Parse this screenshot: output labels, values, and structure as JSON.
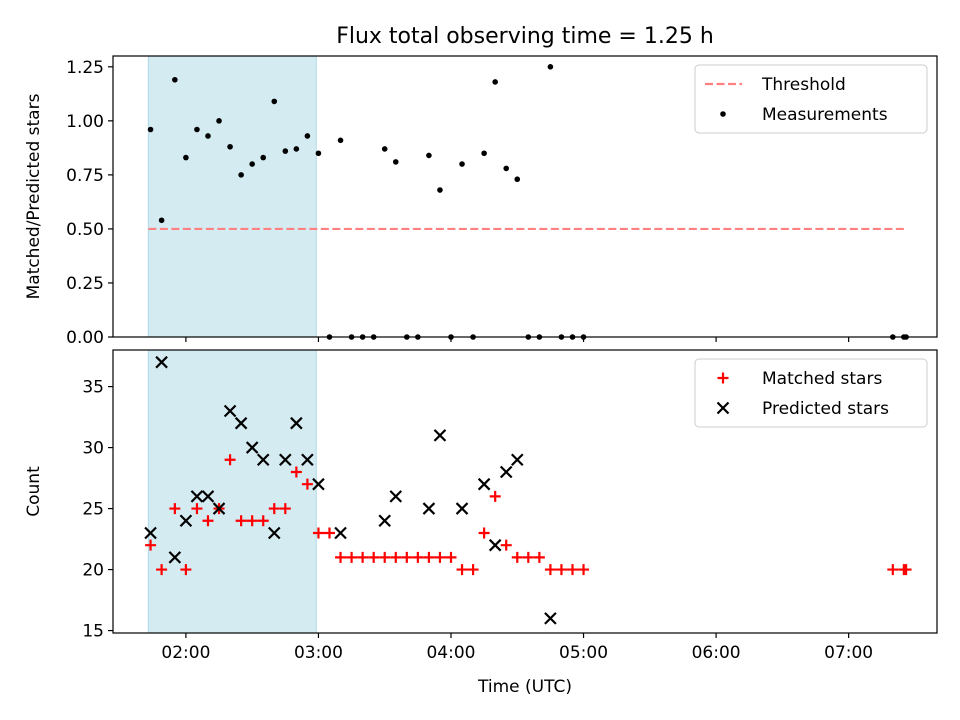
{
  "title": "Flux total observing time = 1.25 h",
  "chart_data": [
    {
      "type": "scatter",
      "ylabel": "Matched/Predicted stars",
      "xlabel": "",
      "xlim": [
        "01:27",
        "07:40"
      ],
      "ylim": [
        0,
        1.3
      ],
      "yticks": [
        0.0,
        0.25,
        0.5,
        0.75,
        1.0,
        1.25
      ],
      "ytick_labels": [
        "0.00",
        "0.25",
        "0.50",
        "0.75",
        "1.00",
        "1.25"
      ],
      "xticks": [
        "02:00",
        "03:00",
        "04:00",
        "05:00",
        "06:00",
        "07:00"
      ],
      "show_xtick_labels": false,
      "shaded_span": {
        "x": [
          "01:43",
          "02:59"
        ],
        "color": "#add8e6"
      },
      "threshold": {
        "y": 0.5,
        "x": [
          "01:43",
          "07:25"
        ],
        "color": "#ff8080",
        "style": "dashed"
      },
      "legend": {
        "placement": "top-right",
        "entries": [
          {
            "label": "Threshold",
            "kind": "dashed-line",
            "color": "#ff8080"
          },
          {
            "label": "Measurements",
            "kind": "dot",
            "color": "#000000"
          }
        ]
      },
      "series": [
        {
          "name": "Measurements",
          "marker": "dot",
          "color": "#000000",
          "points": [
            [
              "01:44",
              0.96
            ],
            [
              "01:49",
              0.54
            ],
            [
              "01:55",
              1.19
            ],
            [
              "02:00",
              0.83
            ],
            [
              "02:05",
              0.96
            ],
            [
              "02:10",
              0.93
            ],
            [
              "02:15",
              1.0
            ],
            [
              "02:20",
              0.88
            ],
            [
              "02:25",
              0.75
            ],
            [
              "02:30",
              0.8
            ],
            [
              "02:35",
              0.83
            ],
            [
              "02:40",
              1.09
            ],
            [
              "02:45",
              0.86
            ],
            [
              "02:50",
              0.87
            ],
            [
              "02:55",
              0.93
            ],
            [
              "03:00",
              0.85
            ],
            [
              "03:05",
              0.0
            ],
            [
              "03:10",
              0.91
            ],
            [
              "03:15",
              0.0
            ],
            [
              "03:20",
              0.0
            ],
            [
              "03:25",
              0.0
            ],
            [
              "03:30",
              0.87
            ],
            [
              "03:35",
              0.81
            ],
            [
              "03:40",
              0.0
            ],
            [
              "03:45",
              0.0
            ],
            [
              "03:50",
              0.84
            ],
            [
              "03:55",
              0.68
            ],
            [
              "04:00",
              0.0
            ],
            [
              "04:05",
              0.8
            ],
            [
              "04:10",
              0.0
            ],
            [
              "04:15",
              0.85
            ],
            [
              "04:20",
              1.18
            ],
            [
              "04:25",
              0.78
            ],
            [
              "04:30",
              0.73
            ],
            [
              "04:35",
              0.0
            ],
            [
              "04:40",
              0.0
            ],
            [
              "04:45",
              1.25
            ],
            [
              "04:50",
              0.0
            ],
            [
              "04:55",
              0.0
            ],
            [
              "05:00",
              0.0
            ],
            [
              "07:20",
              0.0
            ],
            [
              "07:25",
              0.0
            ],
            [
              "07:26",
              0.0
            ]
          ]
        }
      ]
    },
    {
      "type": "scatter",
      "ylabel": "Count",
      "xlabel": "Time (UTC)",
      "xlim": [
        "01:27",
        "07:40"
      ],
      "ylim": [
        14.8,
        38.0
      ],
      "yticks": [
        15,
        20,
        25,
        30,
        35
      ],
      "ytick_labels": [
        "15",
        "20",
        "25",
        "30",
        "35"
      ],
      "xticks": [
        "02:00",
        "03:00",
        "04:00",
        "05:00",
        "06:00",
        "07:00"
      ],
      "xtick_labels": [
        "02:00",
        "03:00",
        "04:00",
        "05:00",
        "06:00",
        "07:00"
      ],
      "shaded_span": {
        "x": [
          "01:43",
          "02:59"
        ],
        "color": "#add8e6"
      },
      "legend": {
        "placement": "top-right",
        "entries": [
          {
            "label": "Matched stars",
            "kind": "plus",
            "color": "#ff0000"
          },
          {
            "label": "Predicted stars",
            "kind": "cross",
            "color": "#000000"
          }
        ]
      },
      "series": [
        {
          "name": "Matched stars",
          "marker": "plus",
          "color": "#ff0000",
          "points": [
            [
              "01:44",
              22
            ],
            [
              "01:49",
              20
            ],
            [
              "01:55",
              25
            ],
            [
              "02:00",
              20
            ],
            [
              "02:05",
              25
            ],
            [
              "02:10",
              24
            ],
            [
              "02:15",
              25
            ],
            [
              "02:20",
              29
            ],
            [
              "02:25",
              24
            ],
            [
              "02:30",
              24
            ],
            [
              "02:35",
              24
            ],
            [
              "02:40",
              25
            ],
            [
              "02:45",
              25
            ],
            [
              "02:50",
              28
            ],
            [
              "02:55",
              27
            ],
            [
              "03:00",
              23
            ],
            [
              "03:05",
              23
            ],
            [
              "03:10",
              21
            ],
            [
              "03:15",
              21
            ],
            [
              "03:20",
              21
            ],
            [
              "03:25",
              21
            ],
            [
              "03:30",
              21
            ],
            [
              "03:35",
              21
            ],
            [
              "03:40",
              21
            ],
            [
              "03:45",
              21
            ],
            [
              "03:50",
              21
            ],
            [
              "03:55",
              21
            ],
            [
              "04:00",
              21
            ],
            [
              "04:05",
              20
            ],
            [
              "04:10",
              20
            ],
            [
              "04:15",
              23
            ],
            [
              "04:20",
              26
            ],
            [
              "04:25",
              22
            ],
            [
              "04:30",
              21
            ],
            [
              "04:35",
              21
            ],
            [
              "04:40",
              21
            ],
            [
              "04:45",
              20
            ],
            [
              "04:50",
              20
            ],
            [
              "04:55",
              20
            ],
            [
              "05:00",
              20
            ],
            [
              "07:20",
              20
            ],
            [
              "07:25",
              20
            ],
            [
              "07:26",
              20
            ]
          ]
        },
        {
          "name": "Predicted stars",
          "marker": "cross",
          "color": "#000000",
          "points": [
            [
              "01:44",
              23
            ],
            [
              "01:49",
              37
            ],
            [
              "01:55",
              21
            ],
            [
              "02:00",
              24
            ],
            [
              "02:05",
              26
            ],
            [
              "02:10",
              26
            ],
            [
              "02:15",
              25
            ],
            [
              "02:20",
              33
            ],
            [
              "02:25",
              32
            ],
            [
              "02:30",
              30
            ],
            [
              "02:35",
              29
            ],
            [
              "02:40",
              23
            ],
            [
              "02:45",
              29
            ],
            [
              "02:50",
              32
            ],
            [
              "02:55",
              29
            ],
            [
              "03:00",
              27
            ],
            [
              "03:10",
              23
            ],
            [
              "03:30",
              24
            ],
            [
              "03:35",
              26
            ],
            [
              "03:50",
              25
            ],
            [
              "03:55",
              31
            ],
            [
              "04:05",
              25
            ],
            [
              "04:15",
              27
            ],
            [
              "04:20",
              22
            ],
            [
              "04:25",
              28
            ],
            [
              "04:30",
              29
            ],
            [
              "04:45",
              16
            ]
          ]
        }
      ]
    }
  ]
}
